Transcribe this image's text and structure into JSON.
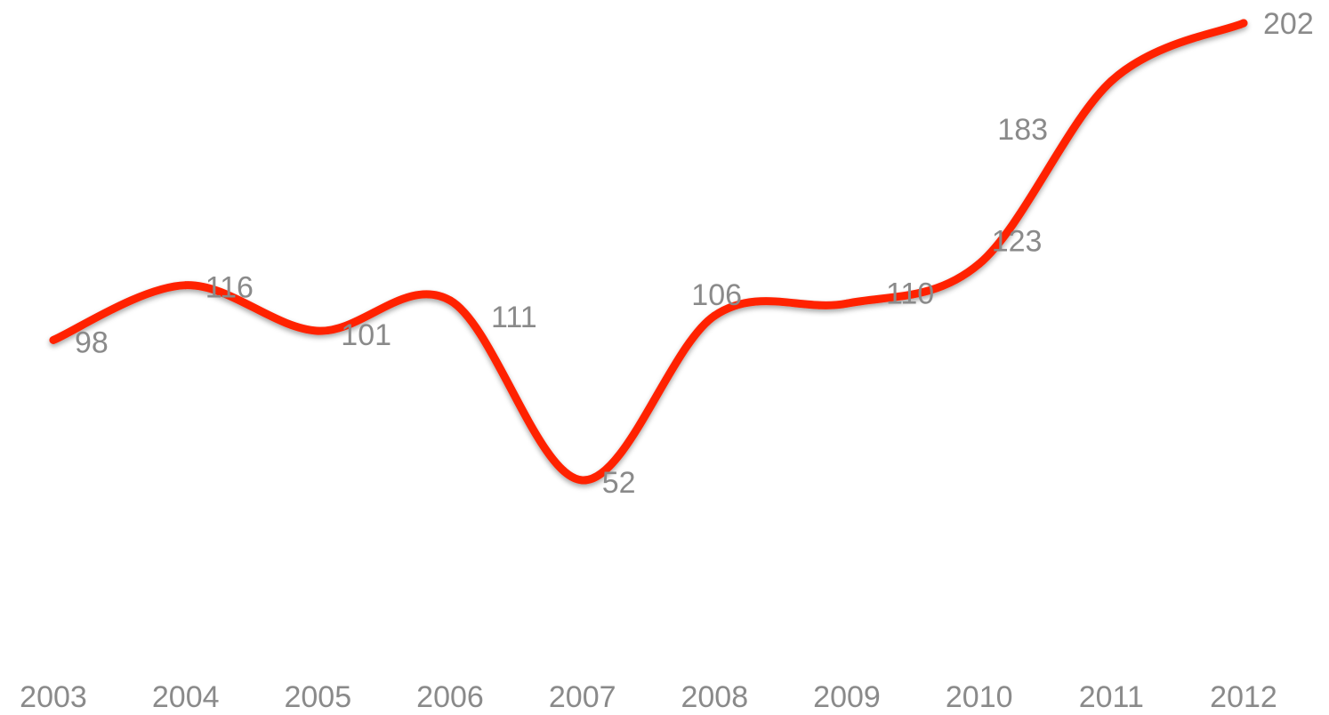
{
  "chart_data": {
    "type": "line",
    "title": "",
    "xlabel": "",
    "ylabel": "",
    "categories": [
      "2003",
      "2004",
      "2005",
      "2006",
      "2007",
      "2008",
      "2009",
      "2010",
      "2011",
      "2012"
    ],
    "series": [
      {
        "values": [
          98,
          116,
          101,
          111,
          52,
          106,
          110,
          123,
          183,
          202
        ]
      }
    ],
    "data_labels": [
      "98",
      "116",
      "101",
      "111",
      "52",
      "106",
      "110",
      "123",
      "183",
      "202"
    ],
    "ylim": [
      0,
      210
    ],
    "grid": false,
    "legend": "none",
    "smooth": true,
    "colors": {
      "line": "#ff2200",
      "text": "#8a8a8a",
      "shadow": "#000000"
    }
  }
}
